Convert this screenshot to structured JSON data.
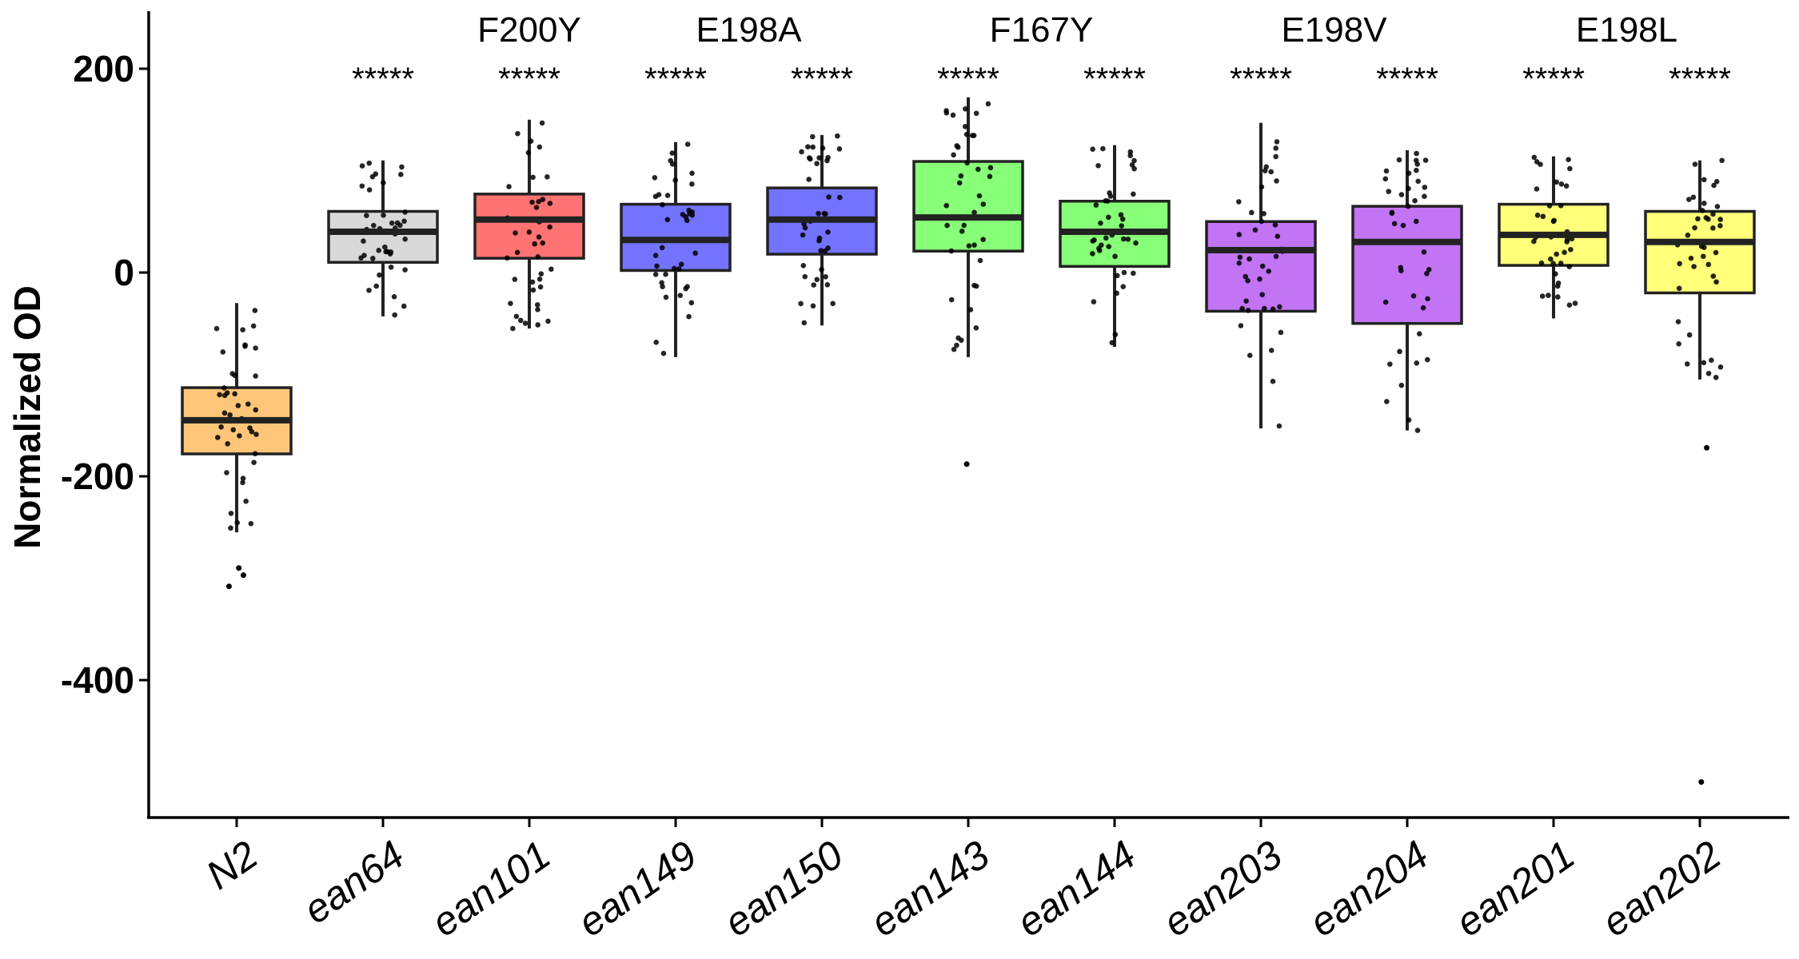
{
  "chart_data": {
    "type": "box",
    "title": "",
    "xlabel": "",
    "ylabel": "Normalized OD",
    "ylim": [
      -530,
      255
    ],
    "yticks": [
      200,
      0,
      -200,
      -400
    ],
    "ytick_labels": [
      "200",
      "0",
      "-200",
      "-400"
    ],
    "grid": false,
    "legend": "none",
    "categories": [
      "N2",
      "ean64",
      "ean101",
      "ean149",
      "ean150",
      "ean143",
      "ean144",
      "ean203",
      "ean204",
      "ean201",
      "ean202"
    ],
    "colors": [
      "#FFC67A",
      "#D9D9D9",
      "#FF7373",
      "#7373FF",
      "#7373FF",
      "#88FF78",
      "#88FF78",
      "#C274F5",
      "#C274F5",
      "#FFFF7A",
      "#FFFF7A"
    ],
    "boxes": [
      {
        "category": "N2",
        "q1": -178,
        "median": -145,
        "q3": -113,
        "whisker_low": -255,
        "whisker_high": -30,
        "outliers": [
          -290,
          -297,
          -308
        ]
      },
      {
        "category": "ean64",
        "q1": 10,
        "median": 40,
        "q3": 60,
        "whisker_low": -43,
        "whisker_high": 110,
        "outliers": []
      },
      {
        "category": "ean101",
        "q1": 14,
        "median": 52,
        "q3": 77,
        "whisker_low": -55,
        "whisker_high": 150,
        "outliers": []
      },
      {
        "category": "ean149",
        "q1": 2,
        "median": 32,
        "q3": 67,
        "whisker_low": -83,
        "whisker_high": 128,
        "outliers": []
      },
      {
        "category": "ean150",
        "q1": 18,
        "median": 52,
        "q3": 83,
        "whisker_low": -52,
        "whisker_high": 135,
        "outliers": []
      },
      {
        "category": "ean143",
        "q1": 21,
        "median": 54,
        "q3": 109,
        "whisker_low": -83,
        "whisker_high": 172,
        "outliers": [
          -188
        ]
      },
      {
        "category": "ean144",
        "q1": 6,
        "median": 40,
        "q3": 70,
        "whisker_low": -73,
        "whisker_high": 125,
        "outliers": []
      },
      {
        "category": "ean203",
        "q1": -38,
        "median": 22,
        "q3": 50,
        "whisker_low": -153,
        "whisker_high": 147,
        "outliers": []
      },
      {
        "category": "ean204",
        "q1": -50,
        "median": 30,
        "q3": 65,
        "whisker_low": -155,
        "whisker_high": 120,
        "outliers": []
      },
      {
        "category": "ean201",
        "q1": 7,
        "median": 37,
        "q3": 67,
        "whisker_low": -45,
        "whisker_high": 114,
        "outliers": []
      },
      {
        "category": "ean202",
        "q1": -20,
        "median": 30,
        "q3": 60,
        "whisker_low": -105,
        "whisker_high": 110,
        "outliers": [
          -172,
          -500
        ]
      }
    ],
    "significance": [
      {
        "category": "ean64",
        "label": "*****"
      },
      {
        "category": "ean101",
        "label": "*****"
      },
      {
        "category": "ean149",
        "label": "*****"
      },
      {
        "category": "ean150",
        "label": "*****"
      },
      {
        "category": "ean143",
        "label": "*****"
      },
      {
        "category": "ean144",
        "label": "*****"
      },
      {
        "category": "ean203",
        "label": "*****"
      },
      {
        "category": "ean204",
        "label": "*****"
      },
      {
        "category": "ean201",
        "label": "*****"
      },
      {
        "category": "ean202",
        "label": "*****"
      }
    ],
    "groups": [
      {
        "label": "F200Y",
        "categories": [
          "ean101"
        ]
      },
      {
        "label": "E198A",
        "categories": [
          "ean149",
          "ean150"
        ]
      },
      {
        "label": "F167Y",
        "categories": [
          "ean143",
          "ean144"
        ]
      },
      {
        "label": "E198V",
        "categories": [
          "ean203",
          "ean204"
        ]
      },
      {
        "label": "E198L",
        "categories": [
          "ean201",
          "ean202"
        ]
      }
    ]
  }
}
